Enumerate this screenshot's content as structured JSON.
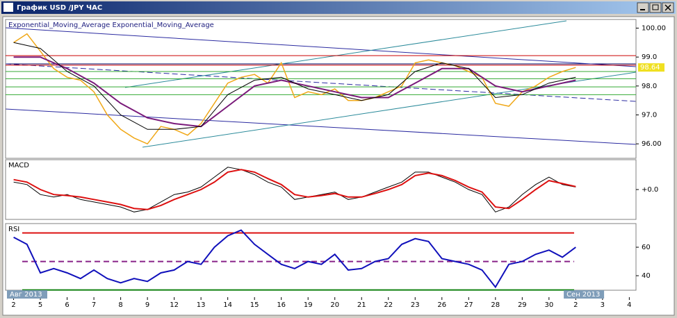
{
  "window": {
    "title": "График USD /JPY ЧАС"
  },
  "chart_data": [
    {
      "type": "line",
      "indicator_label": "Exponential_Moving_Average Exponential_Moving_Average",
      "x": [
        0,
        0.5,
        1,
        1.5,
        2,
        2.5,
        3,
        3.5,
        4,
        4.5,
        5,
        5.5,
        6,
        6.5,
        7,
        7.5,
        8,
        8.5,
        9,
        9.5,
        10,
        10.5,
        11,
        11.5,
        12,
        12.5,
        13,
        13.5,
        14,
        14.5,
        15,
        15.5,
        16,
        16.5,
        17,
        17.5,
        18,
        18.5,
        19,
        19.5,
        20,
        20.5,
        21
      ],
      "series": [
        {
          "color": "#f0a818",
          "values": [
            99.5,
            99.8,
            99.2,
            98.6,
            98.3,
            98.2,
            97.8,
            97.0,
            96.5,
            96.2,
            96.0,
            96.6,
            96.5,
            96.3,
            96.7,
            97.4,
            98.1,
            98.3,
            98.4,
            98.1,
            98.8,
            97.6,
            97.8,
            97.7,
            97.9,
            97.5,
            97.5,
            97.6,
            97.8,
            98.0,
            98.8,
            98.9,
            98.8,
            98.7,
            98.5,
            98.3,
            97.4,
            97.3,
            97.8,
            98.0,
            98.3,
            98.5,
            98.64
          ]
        },
        {
          "color": "#7a1a7a",
          "width": 2,
          "x": [
            0,
            1,
            2,
            3,
            4,
            5,
            6,
            7,
            8,
            9,
            10,
            11,
            12,
            13,
            14,
            15,
            16,
            17,
            18,
            19,
            20,
            21
          ],
          "values": [
            99.0,
            99.0,
            98.6,
            98.1,
            97.4,
            96.9,
            96.7,
            96.6,
            97.3,
            98.0,
            98.2,
            98.0,
            97.8,
            97.6,
            97.6,
            98.1,
            98.6,
            98.6,
            98.0,
            97.8,
            98.0,
            98.2
          ]
        },
        {
          "color": "#000000",
          "width": 1,
          "x": [
            0,
            1,
            2,
            3,
            4,
            5,
            6,
            7,
            8,
            9,
            10,
            11,
            12,
            13,
            14,
            15,
            16,
            17,
            18,
            19,
            20,
            21
          ],
          "values": [
            99.5,
            99.3,
            98.5,
            98.0,
            97.0,
            96.5,
            96.5,
            96.6,
            97.7,
            98.2,
            98.3,
            97.9,
            97.7,
            97.5,
            97.7,
            98.5,
            98.8,
            98.6,
            97.6,
            97.7,
            98.1,
            98.3
          ]
        }
      ],
      "levels": [
        {
          "value": 99.05,
          "color": "#cc0000"
        },
        {
          "value": 98.72,
          "color": "#cc0000"
        },
        {
          "value": 98.5,
          "color": "#33aa33"
        },
        {
          "value": 98.25,
          "color": "#33aa33"
        },
        {
          "value": 97.97,
          "color": "#33aa33"
        },
        {
          "value": 97.7,
          "color": "#33aa33"
        }
      ],
      "last_price": 98.64,
      "ylim": [
        95.5,
        100.3
      ],
      "yticks": [
        {
          "value": 100,
          "label": "100.00"
        },
        {
          "value": 99,
          "label": "99.0"
        },
        {
          "value": 98,
          "label": "98.0"
        },
        {
          "value": 97,
          "label": "97.0"
        },
        {
          "value": 96,
          "label": "96.00"
        }
      ]
    },
    {
      "type": "line",
      "indicator_label": "MACD",
      "x": [
        0,
        0.5,
        1,
        1.5,
        2,
        2.5,
        3,
        3.5,
        4,
        4.5,
        5,
        5.5,
        6,
        6.5,
        7,
        7.5,
        8,
        8.5,
        9,
        9.5,
        10,
        10.5,
        11,
        11.5,
        12,
        12.5,
        13,
        13.5,
        14,
        14.5,
        15,
        15.5,
        16,
        16.5,
        17,
        17.5,
        18,
        18.5,
        19,
        19.5,
        20,
        20.5,
        21
      ],
      "series": [
        {
          "color": "#000000",
          "width": 1,
          "values": [
            0.15,
            0.1,
            -0.1,
            -0.15,
            -0.1,
            -0.2,
            -0.25,
            -0.3,
            -0.35,
            -0.45,
            -0.4,
            -0.25,
            -0.1,
            -0.05,
            0.05,
            0.25,
            0.45,
            0.4,
            0.3,
            0.15,
            0.05,
            -0.2,
            -0.15,
            -0.1,
            -0.05,
            -0.2,
            -0.15,
            -0.05,
            0.05,
            0.15,
            0.35,
            0.35,
            0.25,
            0.15,
            0.0,
            -0.1,
            -0.45,
            -0.35,
            -0.1,
            0.1,
            0.25,
            0.1,
            0.05
          ]
        },
        {
          "color": "#dd1010",
          "width": 2,
          "values": [
            0.2,
            0.15,
            0.0,
            -0.1,
            -0.12,
            -0.15,
            -0.2,
            -0.25,
            -0.3,
            -0.38,
            -0.4,
            -0.32,
            -0.2,
            -0.1,
            0.0,
            0.15,
            0.35,
            0.4,
            0.35,
            0.22,
            0.1,
            -0.1,
            -0.15,
            -0.12,
            -0.08,
            -0.15,
            -0.15,
            -0.08,
            0.0,
            0.1,
            0.28,
            0.33,
            0.28,
            0.18,
            0.05,
            -0.05,
            -0.35,
            -0.38,
            -0.2,
            0.0,
            0.18,
            0.12,
            0.06
          ]
        }
      ],
      "ylim": [
        -0.6,
        0.6
      ],
      "yticks": [
        {
          "value": 0,
          "label": "+0.0"
        }
      ]
    },
    {
      "type": "line",
      "indicator_label": "RSI",
      "x": [
        0,
        0.5,
        1,
        1.5,
        2,
        2.5,
        3,
        3.5,
        4,
        4.5,
        5,
        5.5,
        6,
        6.5,
        7,
        7.5,
        8,
        8.5,
        9,
        9.5,
        10,
        10.5,
        11,
        11.5,
        12,
        12.5,
        13,
        13.5,
        14,
        14.5,
        15,
        15.5,
        16,
        16.5,
        17,
        17.5,
        18,
        18.5,
        19,
        19.5,
        20,
        20.5,
        21
      ],
      "series": [
        {
          "color": "#1010bb",
          "width": 2,
          "values": [
            67,
            62,
            42,
            45,
            42,
            38,
            44,
            38,
            35,
            38,
            36,
            42,
            44,
            50,
            48,
            60,
            68,
            72,
            62,
            55,
            48,
            45,
            50,
            48,
            55,
            44,
            45,
            50,
            52,
            62,
            66,
            64,
            52,
            50,
            48,
            44,
            32,
            48,
            50,
            55,
            58,
            53,
            60
          ]
        }
      ],
      "levels": [
        {
          "value": 70,
          "color": "#dd1010"
        },
        {
          "value": 50,
          "color": "#882288",
          "style": "dashed"
        },
        {
          "value": 30,
          "color": "#108010"
        }
      ],
      "ylim": [
        29.8,
        76.6
      ],
      "yticks": [
        60,
        40
      ]
    }
  ],
  "xlim": [
    -0.3,
    23.25
  ],
  "xticks": [
    {
      "value": 0,
      "label": "2"
    },
    {
      "value": 1,
      "label": "5"
    },
    {
      "value": 2,
      "label": "6"
    },
    {
      "value": 3,
      "label": "7"
    },
    {
      "value": 4,
      "label": "8"
    },
    {
      "value": 5,
      "label": "9"
    },
    {
      "value": 6,
      "label": "12"
    },
    {
      "value": 7,
      "label": "13"
    },
    {
      "value": 8,
      "label": "14"
    },
    {
      "value": 9,
      "label": "15"
    },
    {
      "value": 10,
      "label": "16"
    },
    {
      "value": 11,
      "label": "19"
    },
    {
      "value": 12,
      "label": "20"
    },
    {
      "value": 13,
      "label": "21"
    },
    {
      "value": 14,
      "label": "22"
    },
    {
      "value": 15,
      "label": "23"
    },
    {
      "value": 16,
      "label": "26"
    },
    {
      "value": 17,
      "label": "27"
    },
    {
      "value": 18,
      "label": "28"
    },
    {
      "value": 19,
      "label": "29"
    },
    {
      "value": 20,
      "label": "30"
    },
    {
      "value": 21,
      "label": "2"
    },
    {
      "value": 22,
      "label": "3"
    },
    {
      "value": 23,
      "label": "4"
    }
  ],
  "month_labels": [
    {
      "value": -0.3,
      "label": "Авг 2013"
    },
    {
      "value": 20.5,
      "label": "Сен 2013"
    }
  ]
}
